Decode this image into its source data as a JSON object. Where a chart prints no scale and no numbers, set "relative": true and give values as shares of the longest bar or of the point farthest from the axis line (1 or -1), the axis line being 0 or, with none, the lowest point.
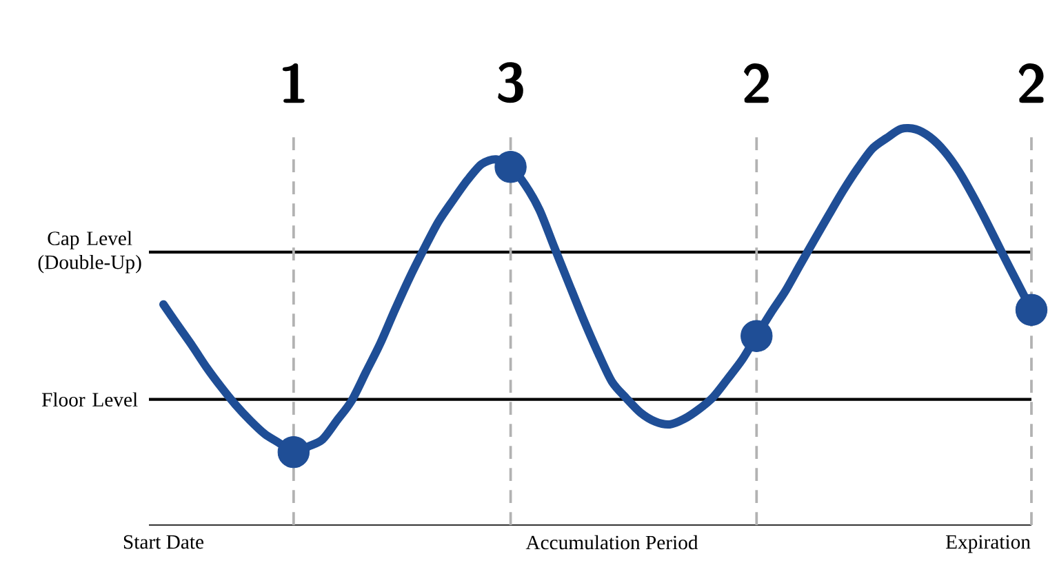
{
  "chart_data": {
    "type": "line",
    "relative": true,
    "categories": [
      "Start Date",
      null,
      null,
      null,
      null,
      null,
      null,
      null,
      null,
      null,
      null,
      null,
      null,
      null,
      null,
      null,
      null,
      null,
      null,
      null,
      null,
      null,
      null,
      null,
      null,
      null,
      null,
      null,
      null,
      null,
      null,
      "Accumulation Period",
      null,
      null,
      null,
      null,
      null,
      null,
      null,
      null,
      null,
      null,
      null,
      null,
      null,
      null,
      null,
      null,
      null,
      null,
      null,
      null,
      null,
      null,
      null,
      null,
      null,
      "Expiration",
      null,
      null,
      null
    ],
    "series": [
      {
        "color": "#1f4e96",
        "marker": "none",
        "values": [
          0.557,
          0.504,
          0.452,
          0.397,
          0.348,
          0.303,
          0.264,
          0.23,
          0.207,
          0.184,
          0.198,
          0.216,
          0.264,
          0.313,
          0.386,
          0.459,
          0.543,
          0.623,
          0.696,
          0.765,
          0.819,
          0.87,
          0.911,
          0.923,
          0.904,
          0.859,
          0.795,
          0.703,
          0.612,
          0.522,
          0.438,
          0.362,
          0.32,
          0.283,
          0.261,
          0.254,
          0.268,
          0.292,
          0.323,
          0.369,
          0.417,
          0.477,
          0.536,
          0.591,
          0.656,
          0.72,
          0.783,
          0.845,
          0.901,
          0.95,
          0.977,
          1.0,
          0.999,
          0.979,
          0.943,
          0.892,
          0.828,
          0.758,
          0.685,
          0.614,
          0.543
        ]
      },
      {
        "type": "scatter",
        "color": "#1f4e96",
        "marker": "circle",
        "values": [
          null,
          null,
          null,
          null,
          null,
          null,
          null,
          null,
          null,
          0.184,
          null,
          null,
          null,
          null,
          null,
          null,
          null,
          null,
          null,
          null,
          null,
          null,
          null,
          null,
          0.904,
          null,
          null,
          null,
          null,
          null,
          null,
          null,
          null,
          null,
          null,
          null,
          null,
          null,
          null,
          null,
          null,
          0.477,
          null,
          null,
          null,
          null,
          null,
          null,
          null,
          null,
          null,
          null,
          null,
          null,
          null,
          null,
          null,
          null,
          null,
          null,
          0.543
        ]
      }
    ],
    "annotations": [
      "1",
      "3",
      "2",
      "2"
    ],
    "ref_lines": [
      {
        "axis": "y",
        "value": 0.689,
        "label": "Cap Level (Double-Up)",
        "color": "#000000",
        "line_style": "solid"
      },
      {
        "axis": "y",
        "value": 0.317,
        "label": "Floor Level",
        "color": "#000000",
        "line_style": "solid"
      }
    ]
  }
}
